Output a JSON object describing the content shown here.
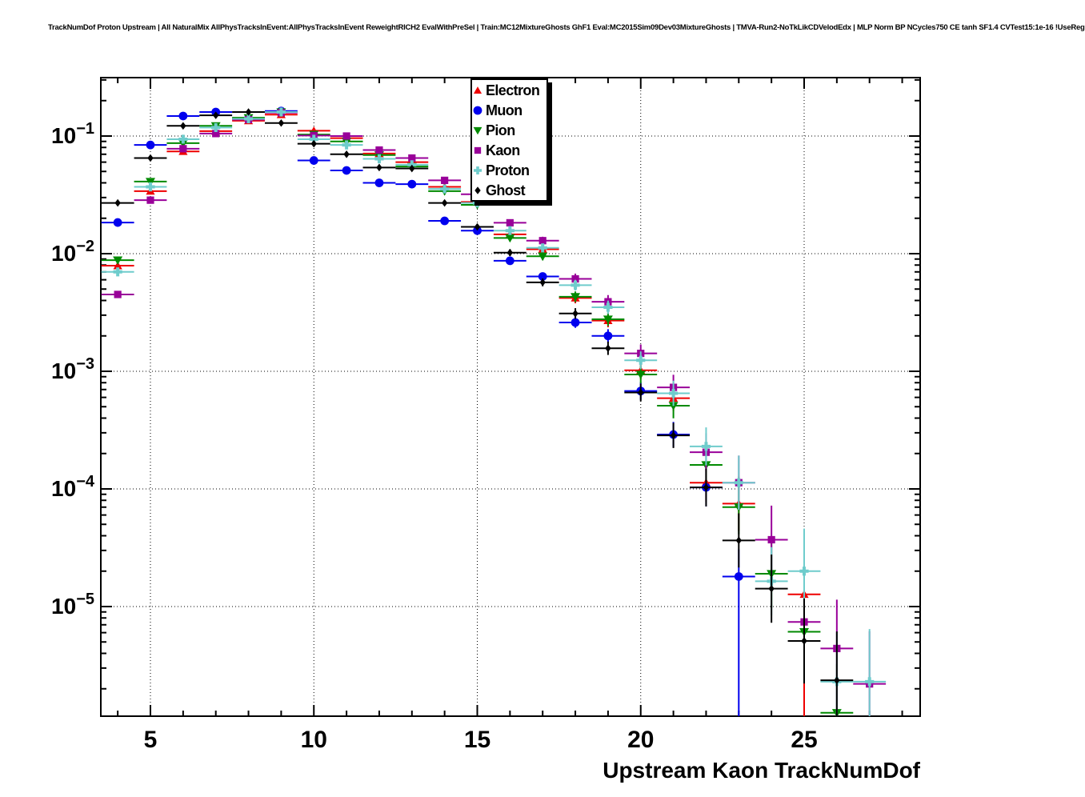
{
  "header": {
    "title": "TrackNumDof Proton Upstream | All NaturalMix AllPhysTracksInEvent:AllPhysTracksInEvent ReweightRICH2 EvalWithPreSel | Train:MC12MixtureGhosts GhF1 Eval:MC2015Sim09Dev03MixtureGhosts | TMVA-Run2-NoTkLikCDVelodEdx | MLP Norm BP NCycles750 CE tanh SF1.4 CVTest15:1e-16 !UseReg"
  },
  "chart_data": {
    "type": "scatter",
    "title": "TrackNumDof Proton Upstream",
    "xlabel": "Upstream Kaon TrackNumDof",
    "ylabel": "",
    "y_scale": "log",
    "x_range": [
      3.48,
      28.55
    ],
    "y_range": [
      1.17e-06,
      0.314
    ],
    "grid": true,
    "legend_position": "top-center",
    "x_major_ticks": [
      5,
      10,
      15,
      20,
      25
    ],
    "x_minor_ticks_from": 4,
    "x_minor_ticks_to": 28,
    "y_major_ticks_exp": [
      -1,
      -2,
      -3,
      -4,
      -5
    ],
    "series": [
      {
        "name": "Electron",
        "color": "#ee0000",
        "marker": "triangle-up",
        "points": [
          [
            4,
            0.0079
          ],
          [
            5,
            0.034
          ],
          [
            6,
            0.074
          ],
          [
            7,
            0.11
          ],
          [
            8,
            0.135
          ],
          [
            9,
            0.152
          ],
          [
            10,
            0.111
          ],
          [
            11,
            0.096
          ],
          [
            12,
            0.071
          ],
          [
            13,
            0.06
          ],
          [
            14,
            0.037
          ],
          [
            15,
            0.0275
          ],
          [
            16,
            0.0146
          ],
          [
            17,
            0.0109
          ],
          [
            18,
            0.0042
          ],
          [
            19,
            0.0027
          ],
          [
            20,
            0.00102
          ],
          [
            21,
            0.00059
          ],
          [
            22,
            0.000113
          ],
          [
            23,
            7.5e-05
          ],
          [
            25,
            1.27e-05
          ]
        ]
      },
      {
        "name": "Muon",
        "color": "#0000ee",
        "marker": "circle",
        "points": [
          [
            4,
            0.0184
          ],
          [
            5,
            0.084
          ],
          [
            6,
            0.148
          ],
          [
            7,
            0.16
          ],
          [
            8,
            0.141
          ],
          [
            9,
            0.163
          ],
          [
            10,
            0.062
          ],
          [
            11,
            0.051
          ],
          [
            12,
            0.04
          ],
          [
            13,
            0.039
          ],
          [
            14,
            0.019
          ],
          [
            15,
            0.0157
          ],
          [
            16,
            0.0087
          ],
          [
            17,
            0.0064
          ],
          [
            18,
            0.0026
          ],
          [
            19,
            0.002
          ],
          [
            20,
            0.00068
          ],
          [
            21,
            0.00029
          ],
          [
            22,
            0.000103
          ],
          [
            23,
            1.8e-05
          ]
        ]
      },
      {
        "name": "Pion",
        "color": "#008a00",
        "marker": "triangle-down",
        "points": [
          [
            4,
            0.0088
          ],
          [
            5,
            0.041
          ],
          [
            6,
            0.087
          ],
          [
            7,
            0.122
          ],
          [
            8,
            0.143
          ],
          [
            9,
            0.16
          ],
          [
            10,
            0.103
          ],
          [
            11,
            0.09
          ],
          [
            12,
            0.069
          ],
          [
            13,
            0.055
          ],
          [
            14,
            0.034
          ],
          [
            15,
            0.026
          ],
          [
            16,
            0.0136
          ],
          [
            17,
            0.0095
          ],
          [
            18,
            0.0043
          ],
          [
            19,
            0.00277
          ],
          [
            20,
            0.00094
          ],
          [
            21,
            0.00051
          ],
          [
            22,
            0.00016
          ],
          [
            23,
            7e-05
          ],
          [
            24,
            1.9e-05
          ],
          [
            25,
            6.1e-06
          ],
          [
            26,
            1.25e-06
          ]
        ]
      },
      {
        "name": "Kaon",
        "color": "#990099",
        "marker": "square",
        "points": [
          [
            4,
            0.0045
          ],
          [
            5,
            0.0285
          ],
          [
            6,
            0.078
          ],
          [
            7,
            0.105
          ],
          [
            8,
            0.138
          ],
          [
            9,
            0.158
          ],
          [
            10,
            0.101
          ],
          [
            11,
            0.1
          ],
          [
            12,
            0.076
          ],
          [
            13,
            0.065
          ],
          [
            14,
            0.042
          ],
          [
            15,
            0.032
          ],
          [
            16,
            0.0183
          ],
          [
            17,
            0.0129
          ],
          [
            18,
            0.0061
          ],
          [
            19,
            0.0039
          ],
          [
            20,
            0.00142
          ],
          [
            21,
            0.00073
          ],
          [
            22,
            0.000205
          ],
          [
            23,
            0.000113
          ],
          [
            24,
            3.7e-05
          ],
          [
            25,
            7.4e-06
          ],
          [
            26,
            4.4e-06
          ],
          [
            27,
            2.2e-06
          ]
        ]
      },
      {
        "name": "Proton",
        "color": "#6fcccc",
        "marker": "plus",
        "points": [
          [
            4,
            0.007
          ],
          [
            5,
            0.037
          ],
          [
            6,
            0.094
          ],
          [
            7,
            0.118
          ],
          [
            8,
            0.14
          ],
          [
            9,
            0.16
          ],
          [
            10,
            0.094
          ],
          [
            11,
            0.084
          ],
          [
            12,
            0.064
          ],
          [
            13,
            0.057
          ],
          [
            14,
            0.0355
          ],
          [
            15,
            0.027
          ],
          [
            16,
            0.0157
          ],
          [
            17,
            0.0112
          ],
          [
            18,
            0.0054
          ],
          [
            19,
            0.0035
          ],
          [
            20,
            0.00124
          ],
          [
            21,
            0.00065
          ],
          [
            22,
            0.00023
          ],
          [
            23,
            0.000113
          ],
          [
            24,
            1.64e-05
          ],
          [
            25,
            2e-05
          ],
          [
            26,
            2.3e-06
          ],
          [
            27,
            2.3e-06
          ]
        ]
      },
      {
        "name": "Ghost",
        "color": "#000000",
        "marker": "diamond",
        "points": [
          [
            4,
            0.027
          ],
          [
            5,
            0.065
          ],
          [
            6,
            0.122
          ],
          [
            7,
            0.15
          ],
          [
            8,
            0.16
          ],
          [
            9,
            0.129
          ],
          [
            10,
            0.086
          ],
          [
            11,
            0.07
          ],
          [
            12,
            0.054
          ],
          [
            13,
            0.053
          ],
          [
            14,
            0.027
          ],
          [
            15,
            0.0169
          ],
          [
            16,
            0.0102
          ],
          [
            17,
            0.0057
          ],
          [
            18,
            0.0031
          ],
          [
            19,
            0.00157
          ],
          [
            20,
            0.00066
          ],
          [
            21,
            0.000285
          ],
          [
            22,
            0.000103
          ],
          [
            23,
            3.65e-05
          ],
          [
            24,
            1.42e-05
          ],
          [
            25,
            5.1e-06
          ],
          [
            26,
            2.36e-06
          ]
        ]
      }
    ],
    "error_bars": {
      "x_half_width": 0.5,
      "y_factor_by_x": {
        "4": 1.05,
        "5": 1.03,
        "6": 1.02,
        "7": 1.02,
        "8": 1.02,
        "9": 1.02,
        "10": 1.02,
        "11": 1.02,
        "12": 1.03,
        "13": 1.03,
        "14": 1.04,
        "15": 1.05,
        "16": 1.07,
        "17": 1.08,
        "18": 1.11,
        "19": 1.14,
        "20": 1.19,
        "21": 1.28,
        "22": 1.45,
        "23": 1.7,
        "24": 1.95,
        "25": 2.3,
        "26": 2.6,
        "27": 2.8
      },
      "to_axis_bottom": [
        [
          "Muon",
          23
        ],
        [
          "Electron",
          25
        ],
        [
          "Pion",
          26
        ],
        [
          "Kaon",
          26
        ],
        [
          "Kaon",
          27
        ]
      ]
    }
  }
}
